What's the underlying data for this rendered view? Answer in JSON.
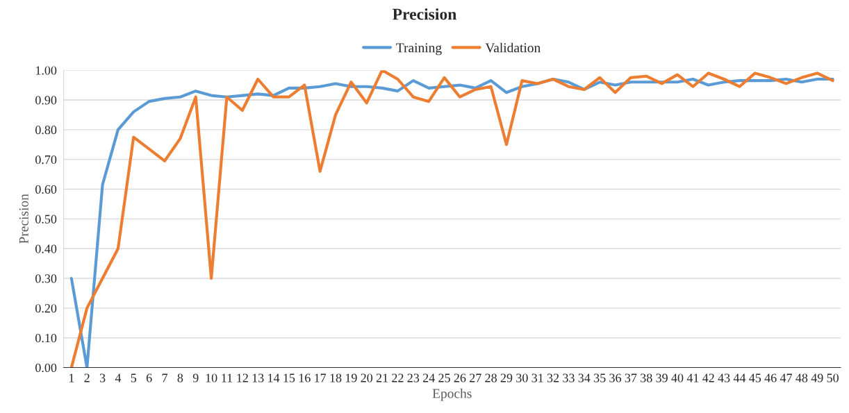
{
  "chart_data": {
    "type": "line",
    "title": "Precision",
    "xlabel": "Epochs",
    "ylabel": "Precision",
    "categories": [
      "1",
      "2",
      "3",
      "4",
      "5",
      "6",
      "7",
      "8",
      "9",
      "10",
      "11",
      "12",
      "13",
      "14",
      "15",
      "16",
      "17",
      "18",
      "19",
      "20",
      "21",
      "22",
      "23",
      "24",
      "25",
      "26",
      "27",
      "28",
      "29",
      "30",
      "31",
      "32",
      "33",
      "34",
      "35",
      "36",
      "37",
      "38",
      "39",
      "40",
      "41",
      "42",
      "43",
      "44",
      "45",
      "46",
      "47",
      "48",
      "49",
      "50"
    ],
    "series": [
      {
        "name": "Training",
        "color": "#5b9bd5",
        "values": [
          0.3,
          0.0,
          0.615,
          0.8,
          0.86,
          0.895,
          0.905,
          0.91,
          0.93,
          0.915,
          0.91,
          0.915,
          0.92,
          0.915,
          0.94,
          0.94,
          0.945,
          0.955,
          0.945,
          0.945,
          0.94,
          0.93,
          0.965,
          0.94,
          0.945,
          0.95,
          0.94,
          0.965,
          0.925,
          0.945,
          0.955,
          0.97,
          0.96,
          0.935,
          0.96,
          0.95,
          0.96,
          0.96,
          0.96,
          0.96,
          0.97,
          0.95,
          0.96,
          0.965,
          0.965,
          0.965,
          0.97,
          0.96,
          0.97,
          0.97
        ]
      },
      {
        "name": "Validation",
        "color": "#ed7d31",
        "values": [
          0.0,
          0.2,
          0.3,
          0.4,
          0.775,
          0.735,
          0.695,
          0.77,
          0.91,
          0.3,
          0.91,
          0.865,
          0.97,
          0.91,
          0.91,
          0.95,
          0.66,
          0.85,
          0.96,
          0.89,
          1.0,
          0.97,
          0.91,
          0.895,
          0.975,
          0.91,
          0.935,
          0.945,
          0.75,
          0.965,
          0.955,
          0.97,
          0.945,
          0.935,
          0.975,
          0.925,
          0.975,
          0.98,
          0.955,
          0.985,
          0.945,
          0.99,
          0.97,
          0.945,
          0.99,
          0.975,
          0.955,
          0.975,
          0.99,
          0.965
        ]
      }
    ],
    "ylim": [
      0,
      1
    ],
    "yticks": [
      {
        "value": 0,
        "label": "0.00"
      },
      {
        "value": 0.1,
        "label": "0.10"
      },
      {
        "value": 0.2,
        "label": "0.20"
      },
      {
        "value": 0.3,
        "label": "0.30"
      },
      {
        "value": 0.4,
        "label": "0.40"
      },
      {
        "value": 0.5,
        "label": "0.50"
      },
      {
        "value": 0.6,
        "label": "0.60"
      },
      {
        "value": 0.7,
        "label": "0.70"
      },
      {
        "value": 0.8,
        "label": "0.80"
      },
      {
        "value": 0.9,
        "label": "0.90"
      },
      {
        "value": 1,
        "label": "1.00"
      }
    ],
    "grid": "y",
    "legend": "top",
    "marker": "none",
    "line_style": "solid"
  }
}
